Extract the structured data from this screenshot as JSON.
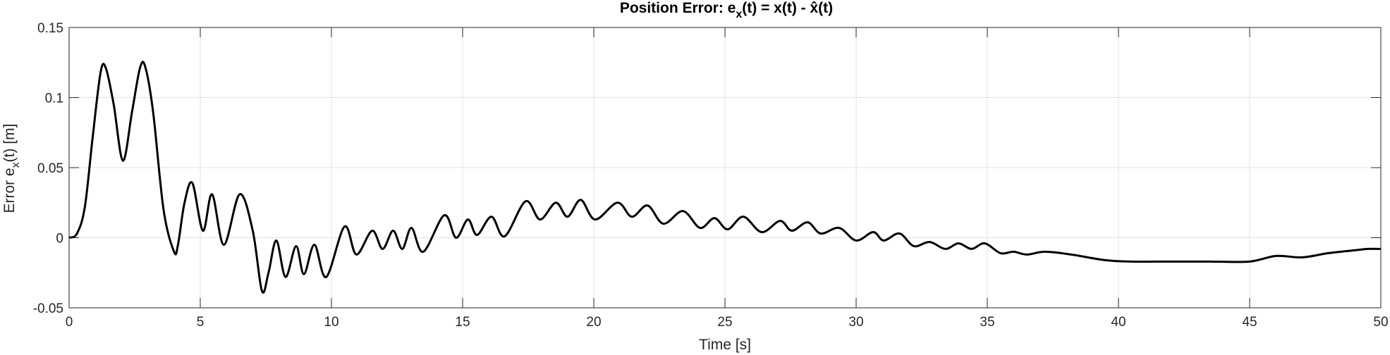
{
  "chart_data": {
    "type": "line",
    "title": "Position Error: e_x(t) = x(t) - x̂(t)",
    "title_parts": {
      "prefix": "Position Error: e",
      "sub": "x",
      "suffix": "(t) = x(t) - x̂(t)"
    },
    "xlabel": "Time [s]",
    "ylabel": "Error e_x(t) [m]",
    "ylabel_parts": {
      "prefix": "Error e",
      "sub": "x",
      "suffix": "(t) [m]"
    },
    "xlim": [
      0,
      50
    ],
    "ylim": [
      -0.05,
      0.15
    ],
    "xticks": [
      0,
      5,
      10,
      15,
      20,
      25,
      30,
      35,
      40,
      45,
      50
    ],
    "xtick_labels": [
      "0",
      "5",
      "10",
      "15",
      "20",
      "25",
      "30",
      "35",
      "40",
      "45",
      "50"
    ],
    "yticks": [
      -0.05,
      0,
      0.05,
      0.1,
      0.15
    ],
    "ytick_labels": [
      "-0.05",
      "0",
      "0.05",
      "0.1",
      "0.15"
    ],
    "grid": true,
    "legend": "none",
    "series": [
      {
        "color": "#000000",
        "x": [
          0,
          0.3,
          0.6,
          0.9,
          1.2,
          1.4,
          1.7,
          2.05,
          2.4,
          2.7,
          2.9,
          3.2,
          3.6,
          4.0,
          4.15,
          4.4,
          4.7,
          5.1,
          5.45,
          5.9,
          6.5,
          7.0,
          7.35,
          7.6,
          7.9,
          8.25,
          8.65,
          8.95,
          9.35,
          9.8,
          10.5,
          10.95,
          11.55,
          11.95,
          12.35,
          12.7,
          13.05,
          13.5,
          14.3,
          14.75,
          15.2,
          15.55,
          16.1,
          16.6,
          17.4,
          17.95,
          18.55,
          19.0,
          19.5,
          20.05,
          20.9,
          21.45,
          22.05,
          22.65,
          23.4,
          24.05,
          24.6,
          25.1,
          25.7,
          26.4,
          27.1,
          27.55,
          28.15,
          28.65,
          29.35,
          30.0,
          30.65,
          31.05,
          31.65,
          32.2,
          32.8,
          33.4,
          33.9,
          34.4,
          34.9,
          35.5,
          36.0,
          36.5,
          37.2,
          38.2,
          39.5,
          40.5,
          42.0,
          43.5,
          45.0,
          46.0,
          47.0,
          48.0,
          49.0,
          49.5,
          50.0
        ],
        "y": [
          0,
          0.003,
          0.022,
          0.072,
          0.118,
          0.121,
          0.095,
          0.055,
          0.09,
          0.121,
          0.122,
          0.09,
          0.02,
          -0.01,
          -0.005,
          0.025,
          0.039,
          0.005,
          0.031,
          -0.005,
          0.031,
          0.005,
          -0.038,
          -0.025,
          -0.002,
          -0.028,
          -0.006,
          -0.026,
          -0.005,
          -0.028,
          0.008,
          -0.012,
          0.005,
          -0.008,
          0.005,
          -0.008,
          0.007,
          -0.01,
          0.016,
          0.0,
          0.013,
          0.002,
          0.015,
          0.001,
          0.026,
          0.013,
          0.025,
          0.015,
          0.027,
          0.013,
          0.025,
          0.015,
          0.023,
          0.01,
          0.019,
          0.007,
          0.014,
          0.006,
          0.015,
          0.004,
          0.012,
          0.005,
          0.011,
          0.003,
          0.007,
          -0.002,
          0.004,
          -0.002,
          0.003,
          -0.006,
          -0.003,
          -0.008,
          -0.004,
          -0.008,
          -0.004,
          -0.011,
          -0.01,
          -0.012,
          -0.01,
          -0.012,
          -0.016,
          -0.017,
          -0.017,
          -0.017,
          -0.017,
          -0.013,
          -0.014,
          -0.011,
          -0.009,
          -0.008,
          -0.008
        ]
      }
    ]
  }
}
